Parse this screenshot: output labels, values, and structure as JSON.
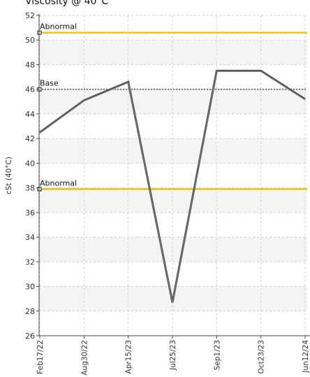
{
  "chart_data": {
    "type": "line",
    "title": "Viscosity @ 40°C",
    "ylabel": "cSt (40°C)",
    "xlabel": "",
    "ylim": [
      26,
      52
    ],
    "y_ticks": [
      26,
      28,
      30,
      32,
      34,
      36,
      38,
      40,
      42,
      44,
      46,
      48,
      50,
      52
    ],
    "categories": [
      "Feb17/22",
      "Aug30/22",
      "Apr15/23",
      "Jul25/23",
      "Sep1/23",
      "Oct23/23",
      "Jun12/24"
    ],
    "series": [
      {
        "name": "",
        "color": "#555555",
        "points": [
          {
            "x": 0,
            "y": 42.5
          },
          {
            "x": 1,
            "y": 45.1
          },
          {
            "x": 2,
            "y": 46.6
          },
          {
            "x": 3,
            "y": 28.7
          },
          {
            "x": 4,
            "y": 47.5
          },
          {
            "x": 5,
            "y": 47.5
          },
          {
            "x": 6,
            "y": 45.2
          }
        ]
      }
    ],
    "reference_lines": [
      {
        "label": "Abnormal",
        "value": 50.6,
        "color": "#f2c200",
        "style": "solid"
      },
      {
        "label": "Base",
        "value": 46.0,
        "color": "#555555",
        "style": "dotted"
      },
      {
        "label": "Abnormal",
        "value": 37.9,
        "color": "#f2c200",
        "style": "solid"
      }
    ],
    "grid": true,
    "band_color": "#f4f4f4",
    "legend": "none"
  }
}
